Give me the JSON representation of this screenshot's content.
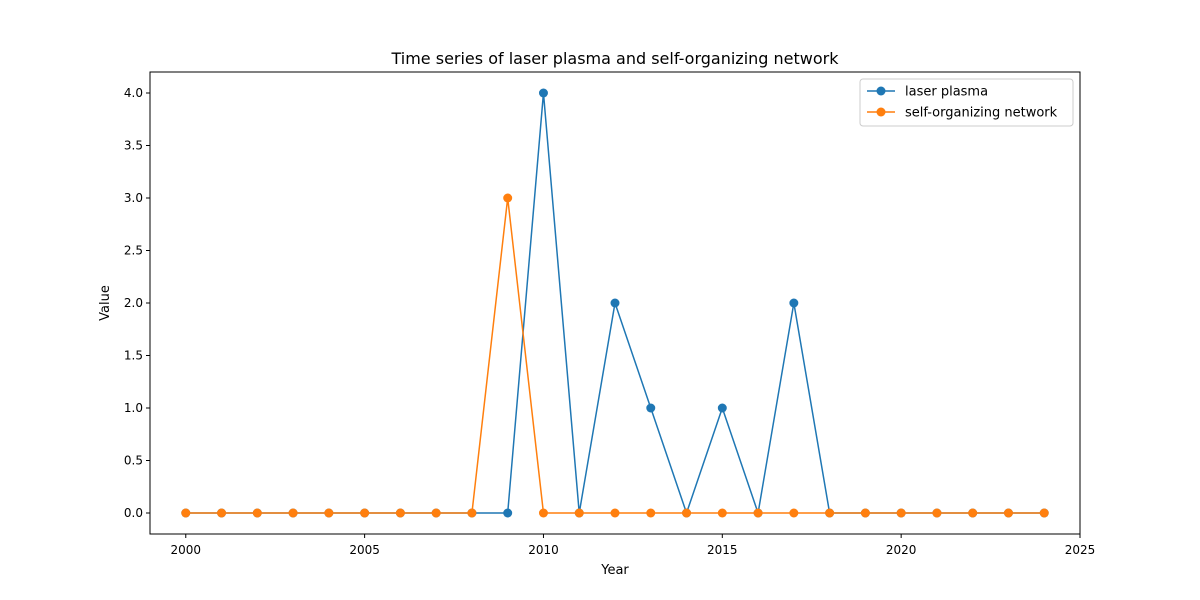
{
  "chart_data": {
    "type": "line",
    "title": "Time series of laser plasma and self-organizing network",
    "xlabel": "Year",
    "ylabel": "Value",
    "x": [
      2000,
      2001,
      2002,
      2003,
      2004,
      2005,
      2006,
      2007,
      2008,
      2009,
      2010,
      2011,
      2012,
      2013,
      2014,
      2015,
      2016,
      2017,
      2018,
      2019,
      2020,
      2021,
      2022,
      2023,
      2024
    ],
    "series": [
      {
        "name": "laser plasma",
        "color": "#1f77b4",
        "values": [
          0,
          0,
          0,
          0,
          0,
          0,
          0,
          0,
          0,
          0,
          4,
          0,
          2,
          1,
          0,
          1,
          0,
          2,
          0,
          0,
          0,
          0,
          0,
          0,
          0
        ]
      },
      {
        "name": "self-organizing network",
        "color": "#ff7f0e",
        "values": [
          0,
          0,
          0,
          0,
          0,
          0,
          0,
          0,
          0,
          3,
          0,
          0,
          0,
          0,
          0,
          0,
          0,
          0,
          0,
          0,
          0,
          0,
          0,
          0,
          0
        ]
      }
    ],
    "xlim": [
      1999.0,
      2025.0
    ],
    "ylim": [
      -0.2,
      4.2
    ],
    "xticks": [
      2000,
      2005,
      2010,
      2015,
      2020,
      2025
    ],
    "yticks": [
      "0.0",
      "0.5",
      "1.0",
      "1.5",
      "2.0",
      "2.5",
      "3.0",
      "3.5",
      "4.0"
    ],
    "grid": false,
    "legend_position": "top-right",
    "marker": "circle"
  }
}
